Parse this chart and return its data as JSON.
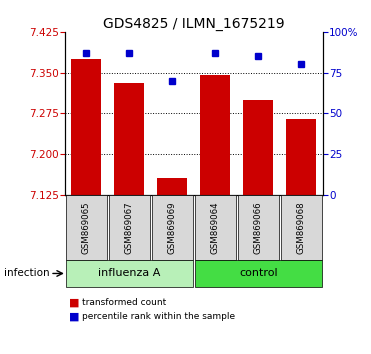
{
  "title": "GDS4825 / ILMN_1675219",
  "samples": [
    "GSM869065",
    "GSM869067",
    "GSM869069",
    "GSM869064",
    "GSM869066",
    "GSM869068"
  ],
  "red_values": [
    7.375,
    7.33,
    7.155,
    7.345,
    7.3,
    7.265
  ],
  "blue_values": [
    87,
    87,
    70,
    87,
    85,
    80
  ],
  "ylim_left": [
    7.125,
    7.425
  ],
  "ylim_right": [
    0,
    100
  ],
  "yticks_left": [
    7.125,
    7.2,
    7.275,
    7.35,
    7.425
  ],
  "yticks_right": [
    0,
    25,
    50,
    75,
    100
  ],
  "groups": [
    {
      "label": "influenza A",
      "indices": [
        0,
        1,
        2
      ],
      "color": "#b8f0b8"
    },
    {
      "label": "control",
      "indices": [
        3,
        4,
        5
      ],
      "color": "#44dd44"
    }
  ],
  "group_label": "infection",
  "bar_color": "#cc0000",
  "dot_color": "#0000cc",
  "bar_width": 0.7,
  "bg_color": "#d8d8d8",
  "legend1": "transformed count",
  "legend2": "percentile rank within the sample",
  "title_fontsize": 10,
  "tick_fontsize": 7.5,
  "label_fontsize": 7.5
}
